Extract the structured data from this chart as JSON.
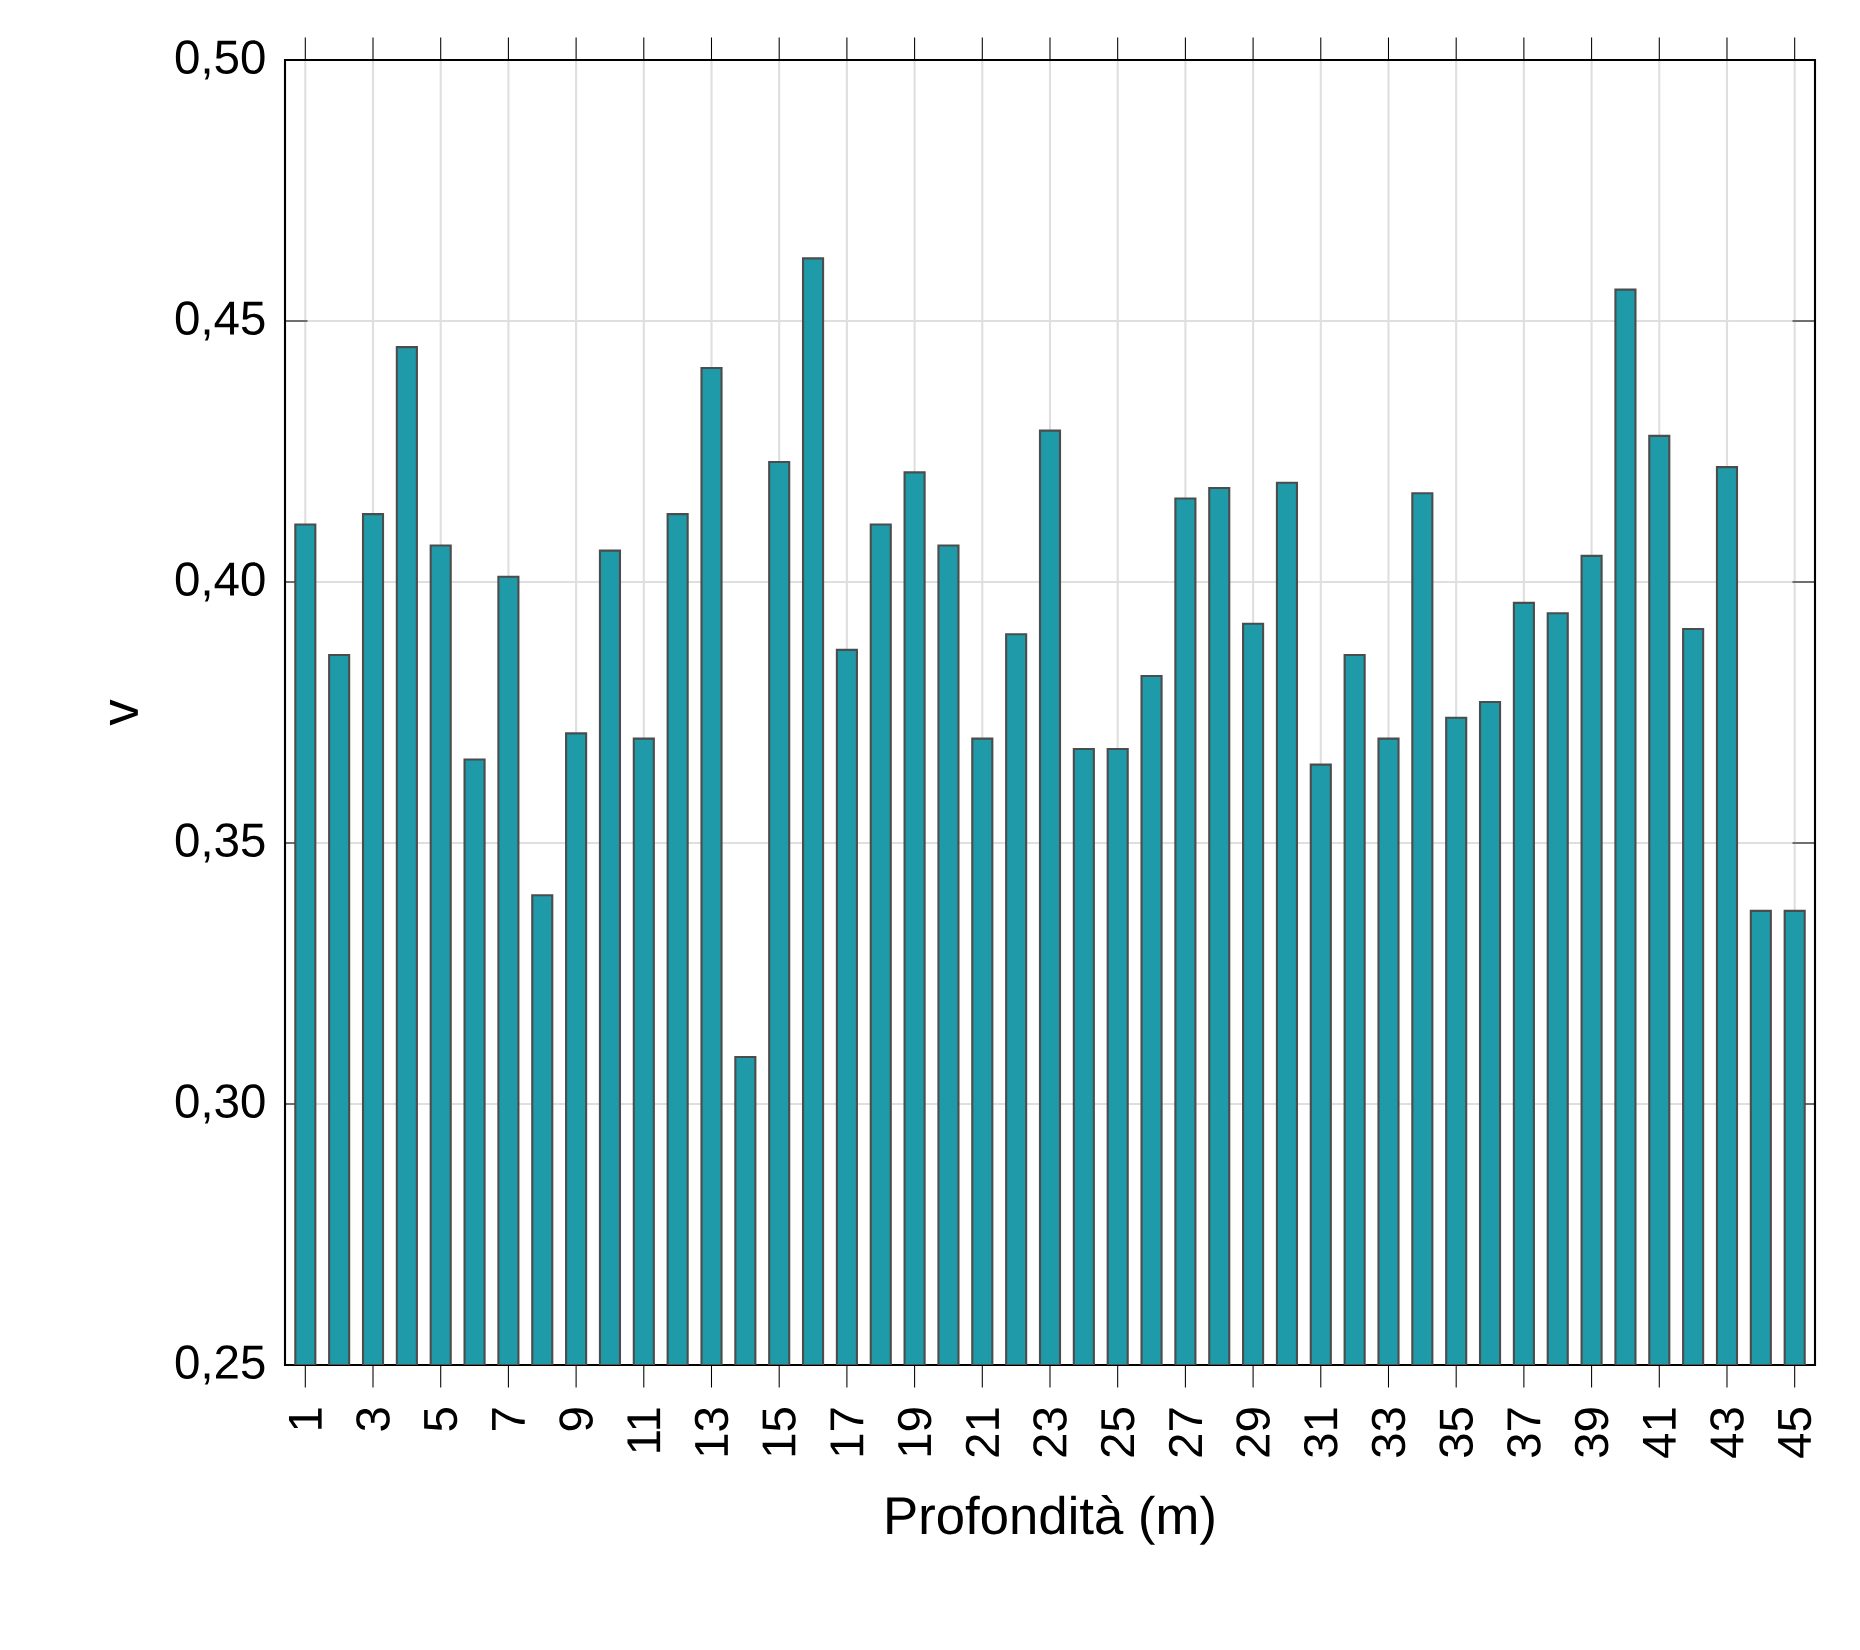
{
  "chart_data": {
    "type": "bar",
    "xlabel": "Profondità (m)",
    "ylabel": "v",
    "categories": [
      "1",
      null,
      "3",
      null,
      "5",
      null,
      "7",
      null,
      "9",
      null,
      "11",
      null,
      "13",
      null,
      "15",
      null,
      "17",
      null,
      "19",
      null,
      "21",
      null,
      "23",
      null,
      "25",
      null,
      "27",
      null,
      "29",
      null,
      "31",
      null,
      "33",
      null,
      "35",
      null,
      "37",
      null,
      "39",
      null,
      "41",
      null,
      "43",
      null,
      "45"
    ],
    "values": [
      0.411,
      0.386,
      0.413,
      0.445,
      0.407,
      0.366,
      0.401,
      0.34,
      0.371,
      0.406,
      0.37,
      0.413,
      0.441,
      0.309,
      0.423,
      0.462,
      0.387,
      0.411,
      0.421,
      0.407,
      0.37,
      0.39,
      0.429,
      0.368,
      0.368,
      0.382,
      0.416,
      0.418,
      0.392,
      0.419,
      0.365,
      0.386,
      0.37,
      0.417,
      0.374,
      0.377,
      0.396,
      0.394,
      0.405,
      0.456,
      0.428,
      0.391,
      0.422,
      0.337,
      0.337
    ],
    "color": "#1f9aa8",
    "ylim": [
      0.25,
      0.5
    ],
    "yticks": [
      {
        "value": 0.25,
        "label": "0,25"
      },
      {
        "value": 0.3,
        "label": "0,30"
      },
      {
        "value": 0.35,
        "label": "0,35"
      },
      {
        "value": 0.4,
        "label": "0,40"
      },
      {
        "value": 0.45,
        "label": "0,45"
      },
      {
        "value": 0.5,
        "label": "0,50"
      }
    ],
    "grid": true
  }
}
